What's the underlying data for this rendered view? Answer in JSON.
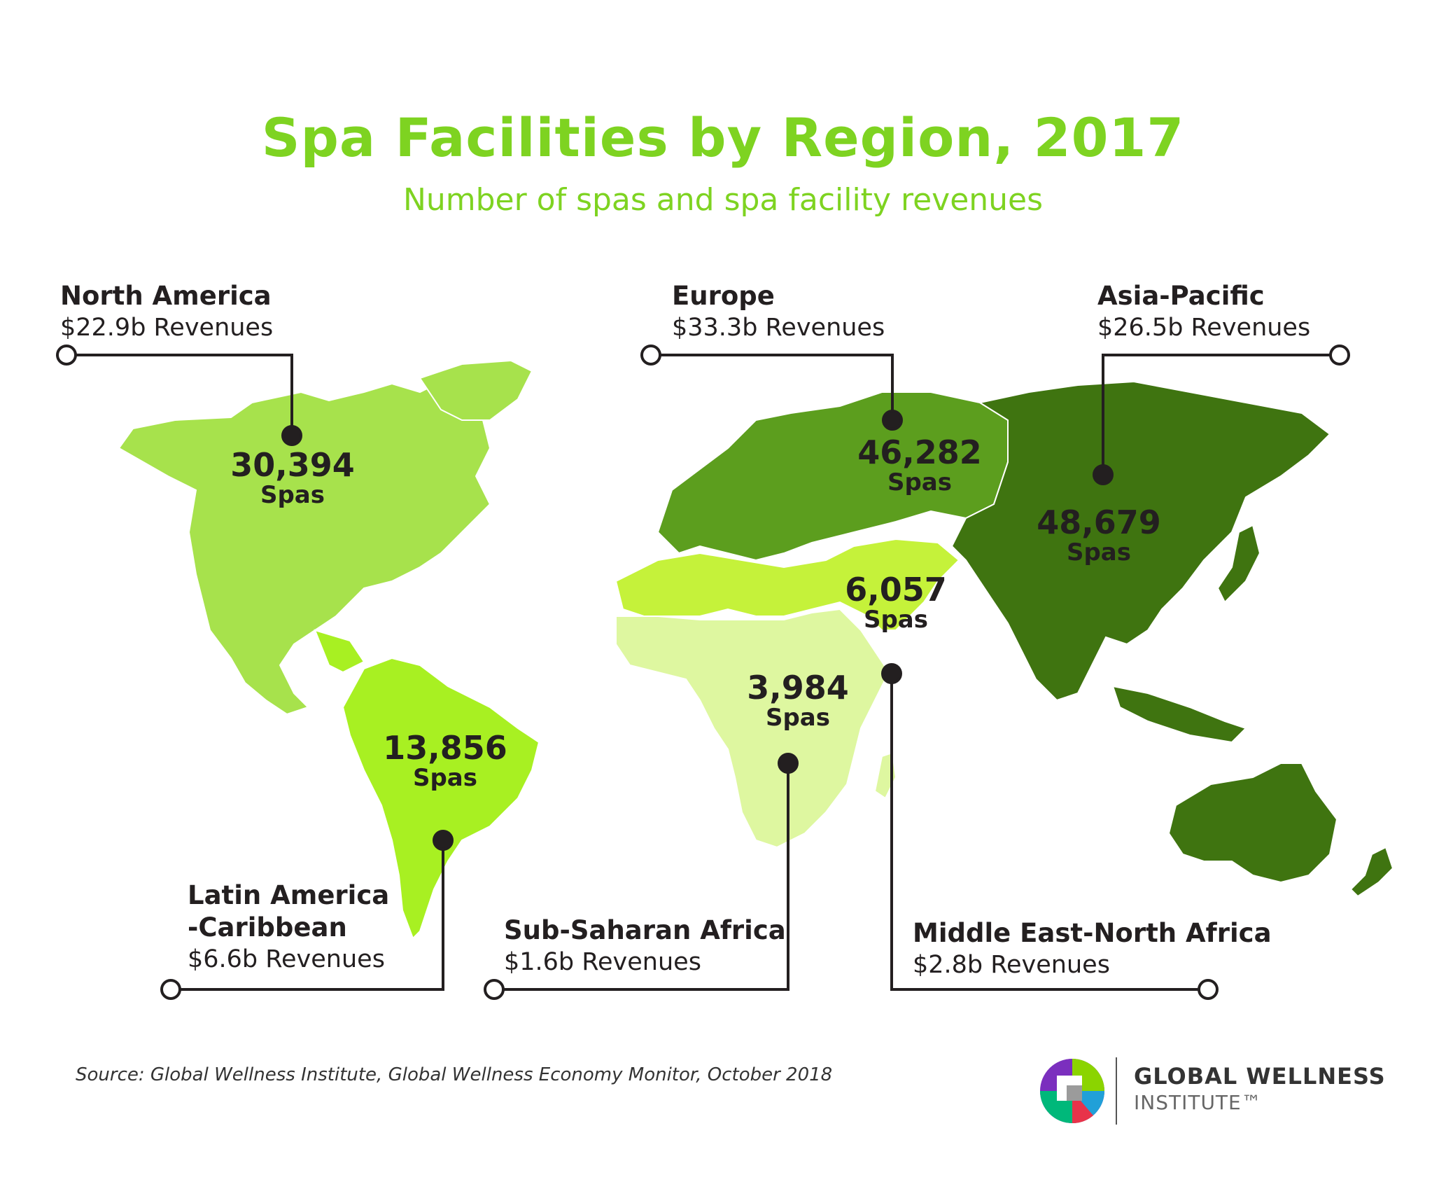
{
  "title": "Spa Facilities by Region, 2017",
  "subtitle": "Number of spas and spa facility revenues",
  "colors": {
    "title": "#7ed321",
    "north_america": "#a7e24c",
    "latin_america": "#a8f022",
    "europe": "#5c9e1e",
    "asia_pacific": "#3f7410",
    "middle_east": "#c5f23a",
    "sub_saharan": "#def7a0",
    "text": "#231f20"
  },
  "regions": [
    {
      "id": "north-america",
      "name": "North America",
      "revenue": "$22.9b Revenues",
      "spas": "30,394",
      "unit": "Spas"
    },
    {
      "id": "europe",
      "name": "Europe",
      "revenue": "$33.3b Revenues",
      "spas": "46,282",
      "unit": "Spas"
    },
    {
      "id": "asia-pacific",
      "name": "Asia-Pacific",
      "revenue": "$26.5b Revenues",
      "spas": "48,679",
      "unit": "Spas"
    },
    {
      "id": "latin-america",
      "name": "Latin America\n-Caribbean",
      "name_line1": "Latin America",
      "name_line2": "-Caribbean",
      "revenue": "$6.6b Revenues",
      "spas": "13,856",
      "unit": "Spas"
    },
    {
      "id": "sub-saharan-africa",
      "name": "Sub-Saharan Africa",
      "revenue": "$1.6b Revenues",
      "spas": "3,984",
      "unit": "Spas"
    },
    {
      "id": "middle-east-north-africa",
      "name": "Middle East-North Africa",
      "revenue": "$2.8b Revenues",
      "spas": "6,057",
      "unit": "Spas"
    }
  ],
  "source": "Source: Global Wellness Institute, Global Wellness Economy Monitor, October 2018",
  "brand": {
    "line1": "GLOBAL WELLNESS",
    "line2": "INSTITUTE™",
    "logo": "gwi-logo-icon"
  }
}
